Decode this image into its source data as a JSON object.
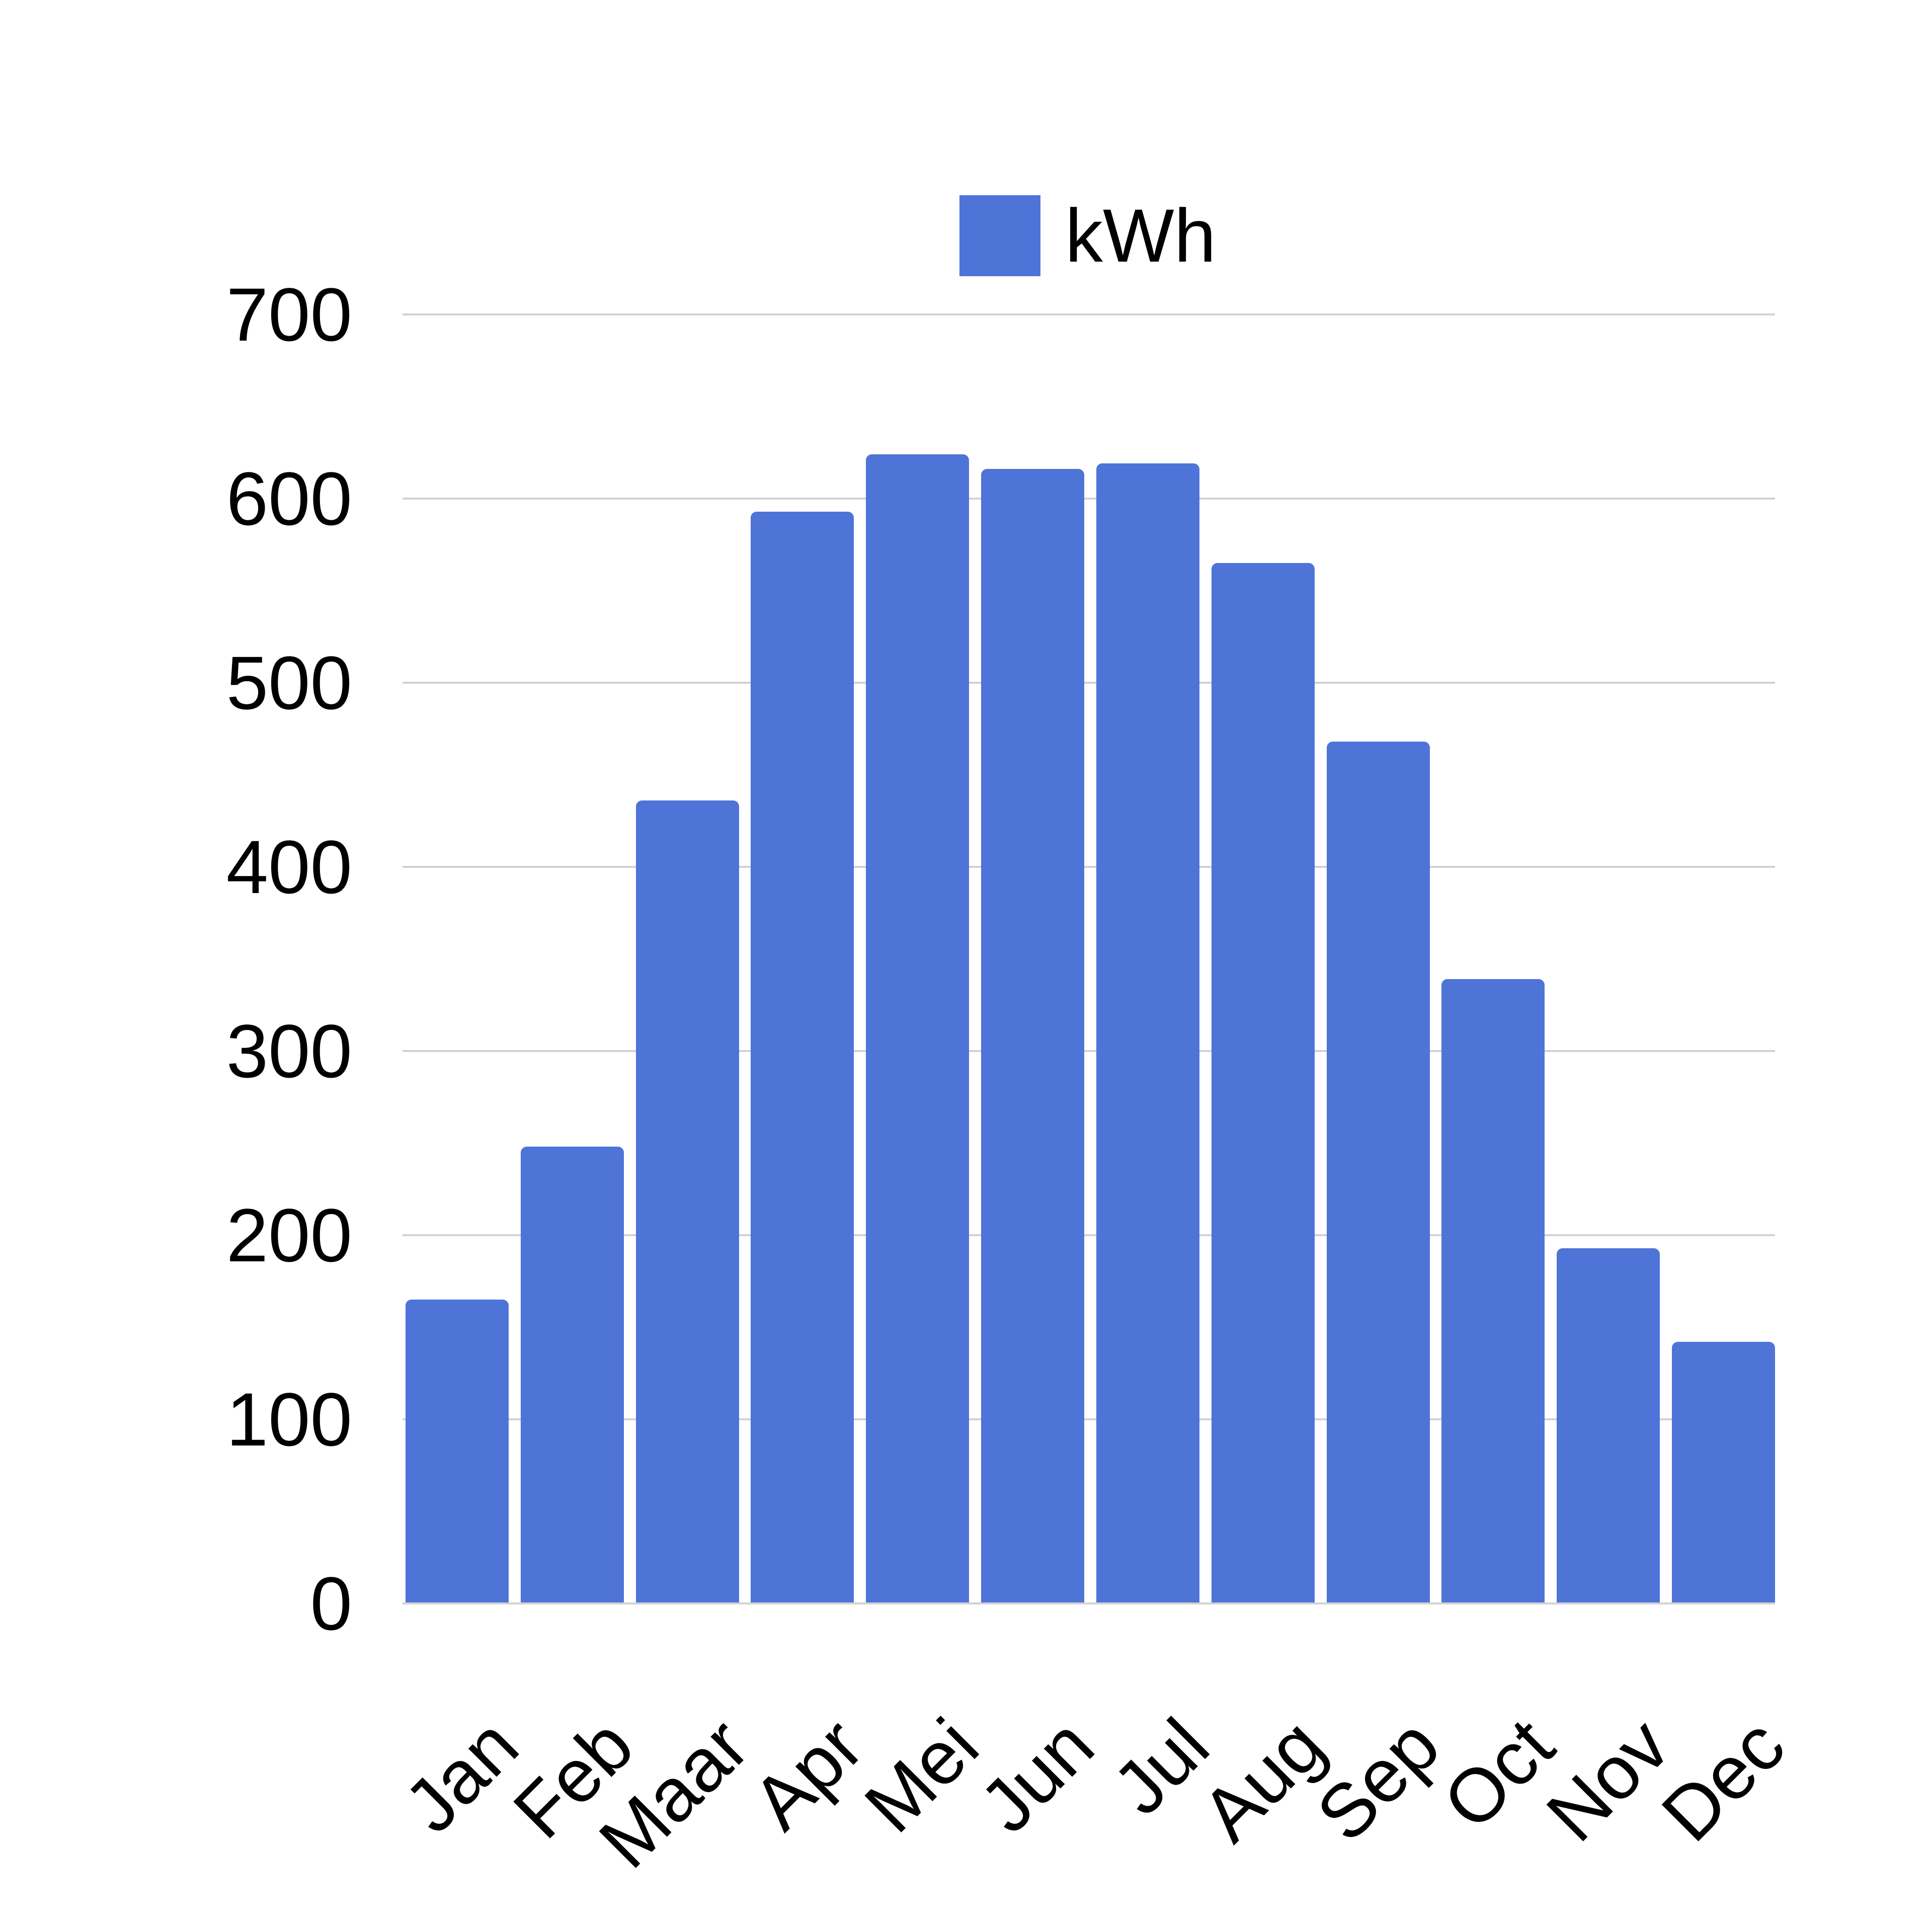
{
  "chart_data": {
    "type": "bar",
    "title": "",
    "xlabel": "",
    "ylabel": "",
    "legend": {
      "label": "kWh",
      "position": "top"
    },
    "categories": [
      "Jan",
      "Feb",
      "Maar",
      "Apr",
      "Mei",
      "Jun",
      "Jul",
      "Aug",
      "Sep",
      "Oct",
      "Nov",
      "Dec"
    ],
    "values": [
      165,
      248,
      436,
      593,
      624,
      616,
      619,
      565,
      468,
      339,
      193,
      142
    ],
    "ylim": [
      0,
      700
    ],
    "yticks": [
      0,
      100,
      200,
      300,
      400,
      500,
      600,
      700
    ],
    "grid": true,
    "legend_position": "top-center",
    "colors": {
      "bar": "#4F74D8",
      "grid": "#D2D2D2",
      "text": "#000000",
      "background": "#FFFFFF"
    }
  }
}
